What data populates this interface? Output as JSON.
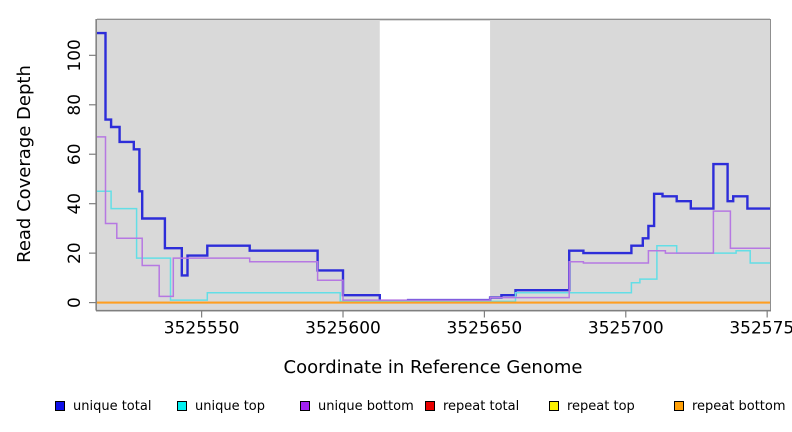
{
  "chart_data": {
    "type": "line",
    "subtype": "step-coverage",
    "title": "",
    "xlabel": "Coordinate in Reference Genome",
    "ylabel": "Read Coverage Depth",
    "xlim": [
      3525513,
      3525751
    ],
    "ylim": [
      -3.2,
      115.1
    ],
    "x_ticks": [
      3525550,
      3525600,
      3525650,
      3525700,
      3525750
    ],
    "y_ticks": [
      0,
      20,
      40,
      60,
      80,
      100
    ],
    "grid": false,
    "plot_bg_color": "#d9d9d9",
    "axis_color": "#7f7f7f",
    "box_color": "#8f8f8f",
    "masked_region": {
      "x_start": 3525613,
      "x_end": 3525652,
      "color": "#ffffff",
      "y_top": 113.9,
      "y_bottom": 0.2
    },
    "legend_position": "bottom",
    "series": [
      {
        "name": "unique total",
        "line_color": "#2d2dd9",
        "swatch_color": "#1010e8",
        "line_width": 2.4,
        "step": [
          [
            3525513,
            109
          ],
          [
            3525516,
            74
          ],
          [
            3525518,
            71
          ],
          [
            3525521,
            65
          ],
          [
            3525526,
            62
          ],
          [
            3525528,
            45
          ],
          [
            3525529,
            34
          ],
          [
            3525537,
            22
          ],
          [
            3525543,
            11
          ],
          [
            3525545,
            19
          ],
          [
            3525552,
            23
          ],
          [
            3525567,
            21
          ],
          [
            3525591,
            13
          ],
          [
            3525600,
            3
          ],
          [
            3525613,
            0.5
          ],
          [
            3525623,
            1
          ],
          [
            3525652,
            2
          ],
          [
            3525656,
            3
          ],
          [
            3525661,
            5
          ],
          [
            3525680,
            21
          ],
          [
            3525685,
            20
          ],
          [
            3525702,
            23
          ],
          [
            3525706,
            26
          ],
          [
            3525708,
            31
          ],
          [
            3525710,
            44
          ],
          [
            3525713,
            43
          ],
          [
            3525718,
            41
          ],
          [
            3525723,
            38
          ],
          [
            3525731,
            56
          ],
          [
            3525736,
            41
          ],
          [
            3525738,
            43
          ],
          [
            3525743,
            38
          ]
        ]
      },
      {
        "name": "unique top",
        "line_color": "#63dee6",
        "swatch_color": "#00f0f0",
        "line_width": 1.5,
        "step": [
          [
            3525513,
            45
          ],
          [
            3525518,
            38
          ],
          [
            3525527,
            18
          ],
          [
            3525539,
            1
          ],
          [
            3525552,
            4
          ],
          [
            3525599,
            0.5
          ],
          [
            3525661,
            4
          ],
          [
            3525702,
            8
          ],
          [
            3525705,
            9.5
          ],
          [
            3525711,
            23
          ],
          [
            3525718,
            20
          ],
          [
            3525739,
            21
          ],
          [
            3525744,
            16
          ]
        ]
      },
      {
        "name": "unique bottom",
        "line_color": "#b678e2",
        "swatch_color": "#a122f0",
        "line_width": 1.5,
        "step": [
          [
            3525513,
            67
          ],
          [
            3525516,
            32
          ],
          [
            3525520,
            26
          ],
          [
            3525529,
            15
          ],
          [
            3525535,
            2.5
          ],
          [
            3525540,
            18
          ],
          [
            3525567,
            16.5
          ],
          [
            3525591,
            9
          ],
          [
            3525600,
            1
          ],
          [
            3525652,
            2
          ],
          [
            3525680,
            16.5
          ],
          [
            3525685,
            16
          ],
          [
            3525708,
            21
          ],
          [
            3525714,
            20
          ],
          [
            3525731,
            37
          ],
          [
            3525737,
            22
          ]
        ]
      },
      {
        "name": "repeat total",
        "line_color": "#e00000",
        "swatch_color": "#e80000",
        "line_width": 1.5,
        "step": [
          [
            3525513,
            0
          ]
        ]
      },
      {
        "name": "repeat top",
        "line_color": "#f5f500",
        "swatch_color": "#fbf200",
        "line_width": 1.5,
        "step": [
          [
            3525513,
            0
          ]
        ]
      },
      {
        "name": "repeat bottom",
        "line_color": "#ff9e21",
        "swatch_color": "#ffa008",
        "line_width": 2,
        "step": [
          [
            3525513,
            0
          ]
        ]
      }
    ]
  }
}
